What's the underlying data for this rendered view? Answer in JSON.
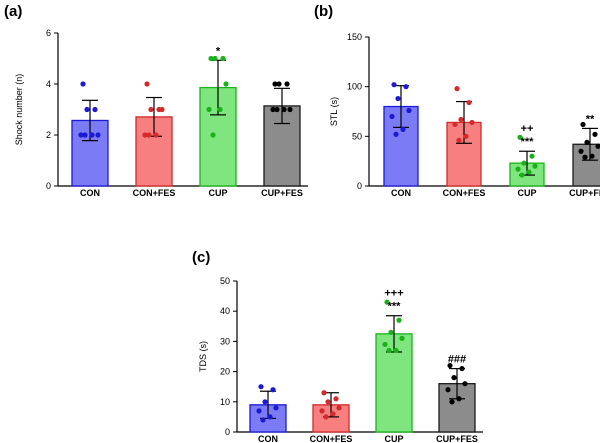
{
  "chart_data": [
    {
      "panel_label": "(a)",
      "type": "bar",
      "title": "",
      "xlabel": "",
      "ylabel": "Shock number (n)",
      "ylim": [
        0,
        6
      ],
      "yticks": [
        0,
        2,
        4,
        6
      ],
      "grid": false,
      "legend": "none",
      "categories": [
        "CON",
        "CON+FES",
        "CUP",
        "CUP+FES"
      ],
      "values": [
        2.57,
        2.71,
        3.86,
        3.14
      ],
      "sd": [
        0.79,
        0.76,
        1.07,
        0.69
      ],
      "points": [
        [
          4,
          3,
          3,
          2,
          2,
          2,
          2
        ],
        [
          4,
          3,
          3,
          3,
          2,
          2,
          2
        ],
        [
          5,
          5,
          5,
          4,
          3,
          3,
          2
        ],
        [
          4,
          4,
          4,
          3,
          3,
          3,
          3
        ]
      ],
      "significance": [
        "",
        "",
        "*",
        ""
      ]
    },
    {
      "panel_label": "(b)",
      "type": "bar",
      "title": "",
      "xlabel": "",
      "ylabel": "STL (s)",
      "ylim": [
        0,
        150
      ],
      "yticks": [
        0,
        50,
        100,
        150
      ],
      "grid": false,
      "legend": "none",
      "categories": [
        "CON",
        "CON+FES",
        "CUP",
        "CUP+FES"
      ],
      "values": [
        80,
        64,
        23,
        42
      ],
      "sd": [
        21,
        21,
        12,
        16
      ],
      "points": [
        [
          102,
          100,
          88,
          76,
          70,
          57,
          52
        ],
        [
          98,
          84,
          67,
          64,
          62,
          50,
          46
        ],
        [
          49,
          30,
          23,
          20,
          17,
          14,
          11
        ],
        [
          62,
          52,
          44,
          40,
          35,
          30,
          29
        ]
      ],
      "significance": [
        "",
        "",
        "++\n***",
        "**"
      ]
    },
    {
      "panel_label": "(c)",
      "type": "bar",
      "title": "",
      "xlabel": "",
      "ylabel": "TDS (s)",
      "ylim": [
        0,
        50
      ],
      "yticks": [
        0,
        10,
        20,
        30,
        40,
        50
      ],
      "grid": false,
      "legend": "none",
      "categories": [
        "CON",
        "CON+FES",
        "CUP",
        "CUP+FES"
      ],
      "values": [
        9,
        9,
        32.5,
        16
      ],
      "sd": [
        4.5,
        4,
        6,
        5
      ],
      "points": [
        [
          15,
          14,
          10,
          8,
          7,
          5,
          4
        ],
        [
          13,
          11,
          10,
          8,
          7,
          6,
          5
        ],
        [
          43,
          37,
          33,
          31,
          29,
          27,
          27
        ],
        [
          22,
          21,
          18,
          16,
          14,
          11,
          10
        ]
      ],
      "significance": [
        "",
        "",
        "+++\n***",
        "###"
      ]
    }
  ],
  "colors": {
    "bar_fill": [
      "#7b7bf5",
      "#f77f7f",
      "#7fe57f",
      "#8c8c8c"
    ],
    "bar_stroke": [
      "#1a1ad6",
      "#d42a2a",
      "#19b319",
      "#1a1a1a"
    ],
    "point": [
      "#1a1ad6",
      "#d42a2a",
      "#19b319",
      "#000000"
    ]
  }
}
